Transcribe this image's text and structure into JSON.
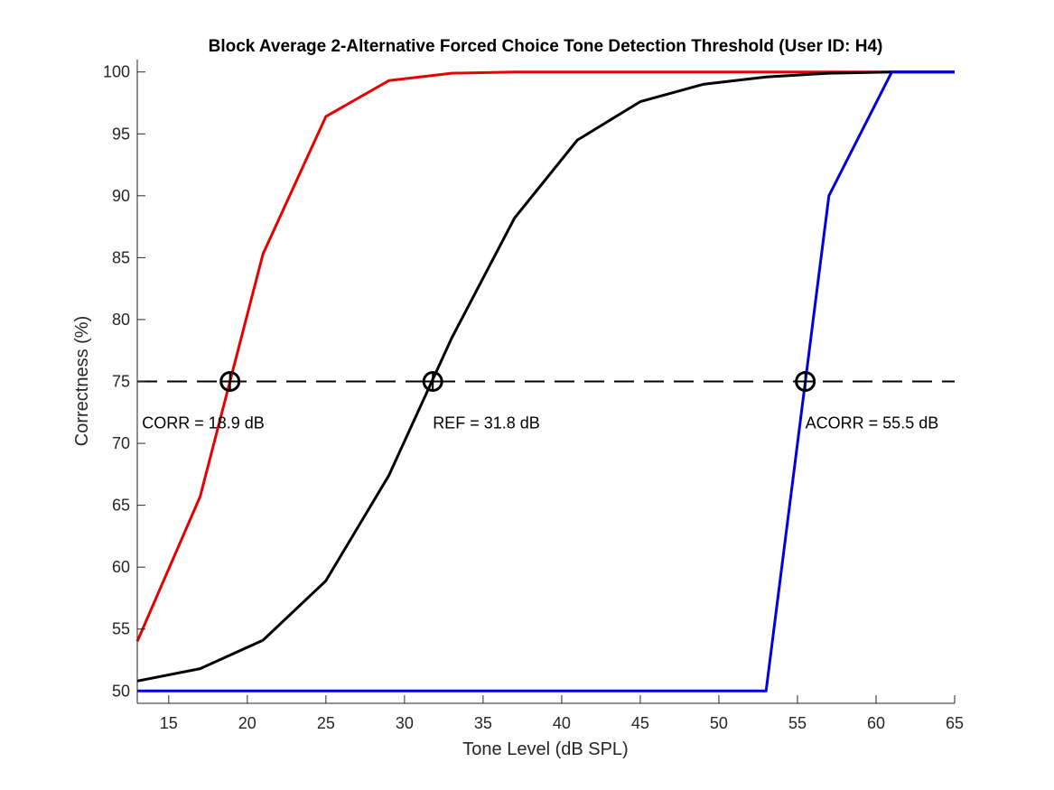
{
  "chart_data": {
    "type": "line",
    "title": "Block Average 2-Alternative Forced Choice Tone Detection Threshold (User ID: H4)",
    "xlabel": "Tone Level (dB SPL)",
    "ylabel": "Correctness (%)",
    "xlim": [
      13,
      65
    ],
    "ylim": [
      49,
      101
    ],
    "xticks": [
      15,
      20,
      25,
      30,
      35,
      40,
      45,
      50,
      55,
      60,
      65
    ],
    "yticks": [
      50,
      55,
      60,
      65,
      70,
      75,
      80,
      85,
      90,
      95,
      100
    ],
    "grid": false,
    "series": [
      {
        "color": "#e60000",
        "x": [
          13,
          17,
          21,
          25,
          29,
          33,
          37,
          41,
          45,
          49,
          53,
          57,
          61,
          65
        ],
        "y": [
          54.0,
          65.7,
          85.3,
          96.4,
          99.3,
          99.9,
          100,
          100,
          100,
          100,
          100,
          100,
          100,
          100
        ]
      },
      {
        "color": "#000000",
        "x": [
          13,
          17,
          21,
          25,
          29,
          33,
          37,
          41,
          45,
          49,
          53,
          57,
          61,
          65
        ],
        "y": [
          50.8,
          51.8,
          54.1,
          58.9,
          67.4,
          78.5,
          88.2,
          94.5,
          97.6,
          99.0,
          99.6,
          99.9,
          100,
          100
        ]
      },
      {
        "color": "#0000e0",
        "x": [
          13,
          17,
          21,
          25,
          29,
          33,
          37,
          41,
          45,
          49,
          53,
          57,
          61,
          65
        ],
        "y": [
          50,
          50,
          50,
          50,
          50,
          50,
          50,
          50,
          50,
          50,
          50,
          90,
          100,
          100
        ]
      }
    ],
    "reference_line": {
      "y": 75,
      "style": "dashed",
      "color": "#000000"
    },
    "markers": [
      {
        "x": 18.9,
        "y": 75
      },
      {
        "x": 31.8,
        "y": 75
      },
      {
        "x": 55.5,
        "y": 75
      }
    ],
    "annotations": [
      {
        "text": "CORR = 18.9 dB",
        "x": 13.3,
        "y": 71.2
      },
      {
        "text": "REF = 31.8 dB",
        "x": 31.8,
        "y": 71.2
      },
      {
        "text": "ACORR = 55.5 dB",
        "x": 55.5,
        "y": 71.2
      }
    ]
  }
}
